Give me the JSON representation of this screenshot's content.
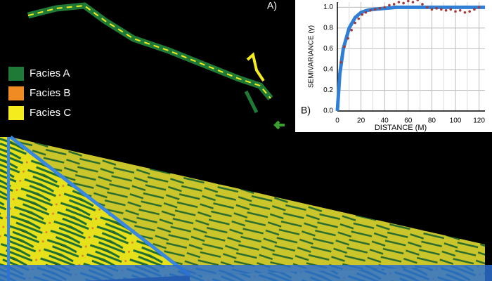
{
  "panel_a": {
    "label": "A)",
    "legend": [
      {
        "name": "Facies A",
        "color": "#1e7a36"
      },
      {
        "name": "Facies B",
        "color": "#f08a22"
      },
      {
        "name": "Facies C",
        "color": "#f4ec1c"
      }
    ]
  },
  "chart_data": {
    "type": "line",
    "label": "B)",
    "y_label": "SEMIVARIANCE (γ)",
    "x_label": "DISTANCE (M)",
    "xlim": [
      0,
      125
    ],
    "ylim": [
      0,
      1.05
    ],
    "xticks": [
      0,
      20,
      40,
      60,
      80,
      100,
      120
    ],
    "yticks": [
      {
        "value": 0,
        "label": "0.0"
      },
      {
        "value": 0.2,
        "label": "0.2"
      },
      {
        "value": 0.4,
        "label": "0.4"
      },
      {
        "value": 0.6,
        "label": "0.6"
      },
      {
        "value": 0.8,
        "label": "0.8"
      },
      {
        "value": 1,
        "label": "1.0"
      }
    ],
    "grid": true,
    "series": [
      {
        "color": "#2f7fd6",
        "mode": "line",
        "x": [
          0,
          2,
          5,
          10,
          15,
          20,
          25,
          30,
          40,
          50,
          60,
          80,
          100,
          120,
          125
        ],
        "values": [
          0,
          0.35,
          0.6,
          0.8,
          0.9,
          0.95,
          0.97,
          0.98,
          0.99,
          1,
          1,
          1,
          1,
          1,
          1
        ]
      },
      {
        "color": "#a23a3a",
        "mode": "markers",
        "x": [
          3,
          6,
          9,
          12,
          15,
          18,
          21,
          24,
          28,
          32,
          36,
          40,
          44,
          48,
          52,
          56,
          60,
          64,
          68,
          72,
          76,
          80,
          84,
          88,
          92,
          96,
          100,
          104,
          108,
          112,
          116,
          120
        ],
        "values": [
          0.47,
          0.62,
          0.7,
          0.78,
          0.85,
          0.89,
          0.93,
          0.95,
          0.97,
          0.98,
          0.99,
          1.0,
          1.02,
          1.03,
          1.05,
          1.04,
          1.06,
          1.05,
          1.07,
          1.03,
          1.0,
          0.98,
          0.99,
          0.98,
          0.97,
          0.98,
          0.96,
          0.97,
          0.95,
          0.96,
          0.98,
          1.0
        ]
      }
    ]
  }
}
